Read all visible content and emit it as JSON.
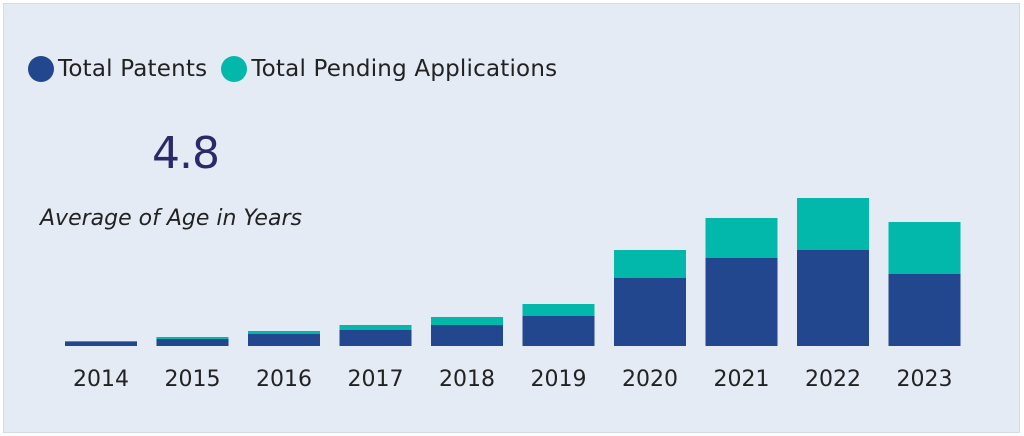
{
  "legend": {
    "items": [
      {
        "label": "Total Patents",
        "color": "#22478e"
      },
      {
        "label": "Total Pending Applications",
        "color": "#01b8aa"
      }
    ]
  },
  "kpi": {
    "value": "4.8",
    "caption": "Average of Age in Years"
  },
  "chart_data": {
    "type": "bar",
    "stacked": true,
    "categories": [
      "2014",
      "2015",
      "2016",
      "2017",
      "2018",
      "2019",
      "2020",
      "2021",
      "2022",
      "2023"
    ],
    "series": [
      {
        "name": "Total Patents",
        "color": "#22478e",
        "values": [
          4,
          7,
          12,
          16,
          21,
          30,
          68,
          88,
          96,
          72
        ]
      },
      {
        "name": "Total Pending Applications",
        "color": "#01b8aa",
        "values": [
          1,
          2,
          3,
          5,
          8,
          12,
          28,
          40,
          52,
          52
        ]
      }
    ],
    "xlabel": "",
    "ylabel": "",
    "ylim": [
      0,
      160
    ],
    "grid": false,
    "legend_position": "top-left"
  }
}
